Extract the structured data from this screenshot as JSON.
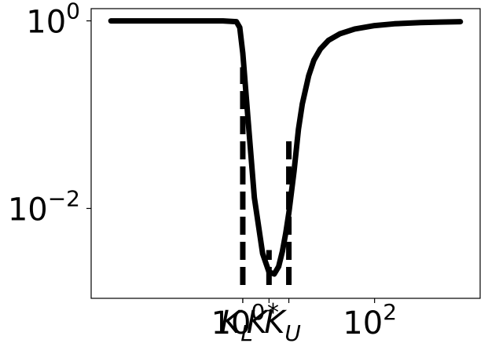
{
  "chart_data": {
    "type": "line",
    "title": "",
    "xlabel": "",
    "ylabel": "",
    "x_scale": "log",
    "y_scale": "log",
    "xlim": [
      0.005,
      4000
    ],
    "ylim": [
      0.0011,
      1.35
    ],
    "grid": false,
    "legend": "none",
    "x_ticks": [
      {
        "value": 1,
        "base": "10",
        "exp": "0"
      },
      {
        "value": 100,
        "base": "10",
        "exp": "2"
      }
    ],
    "y_ticks": [
      {
        "value": 1,
        "base": "10",
        "exp": "0"
      },
      {
        "value": 0.01,
        "base": "10",
        "exp": "−2"
      }
    ],
    "series": [
      {
        "x": [
          0.01,
          0.05,
          0.2,
          0.5,
          0.8,
          0.9,
          1.0,
          1.2,
          1.5,
          2.0,
          2.5,
          3.0,
          3.5,
          4.0,
          4.5,
          5.0,
          6.0,
          7.0,
          8.0,
          10.0,
          12.0,
          15.0,
          20.0,
          30.0,
          50.0,
          100.0,
          200.0,
          500.0,
          1000.0,
          2000.0
        ],
        "y": [
          1.0,
          1.0,
          1.0,
          1.0,
          0.98,
          0.85,
          0.45,
          0.09,
          0.013,
          0.0033,
          0.0021,
          0.002,
          0.0024,
          0.0035,
          0.0055,
          0.009,
          0.025,
          0.07,
          0.13,
          0.26,
          0.38,
          0.5,
          0.62,
          0.73,
          0.82,
          0.89,
          0.93,
          0.96,
          0.97,
          0.98
        ],
        "color": "#000000"
      }
    ],
    "vlines": [
      {
        "label": "K_L",
        "x": 1.0,
        "y_top": 0.32,
        "display": {
          "main": "K",
          "sub": "L"
        }
      },
      {
        "label": "K*",
        "x": 2.5,
        "y_top": 0.0036,
        "display": {
          "main": "K",
          "sup": "*"
        }
      },
      {
        "label": "K_U",
        "x": 5.0,
        "y_top": 0.055,
        "display": {
          "main": "K",
          "sub": "U"
        }
      }
    ]
  }
}
